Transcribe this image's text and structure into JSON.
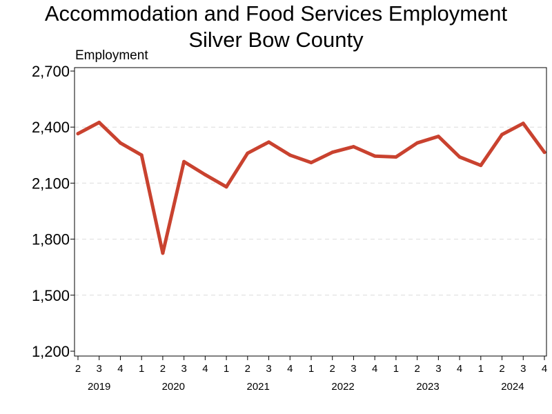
{
  "chart_data": {
    "type": "line",
    "title": "Accommodation and Food Services Employment",
    "subtitle": "Silver Bow County",
    "ylabel": "Employment",
    "xlabel": "",
    "ylim": [
      1200,
      2700
    ],
    "yticks": [
      "1,200",
      "1,500",
      "1,800",
      "2,100",
      "2,400",
      "2,700"
    ],
    "grid": true,
    "x_quarters": [
      "2",
      "3",
      "4",
      "1",
      "2",
      "3",
      "4",
      "1",
      "2",
      "3",
      "4",
      "1",
      "2",
      "3",
      "4",
      "1",
      "2",
      "3",
      "4",
      "1",
      "2",
      "3",
      "4"
    ],
    "x_years": [
      "2019",
      "2020",
      "2021",
      "2022",
      "2023",
      "2024"
    ],
    "year_start_index": [
      0,
      3,
      7,
      11,
      15,
      19
    ],
    "series": [
      {
        "values": [
          2365,
          2425,
          2315,
          2250,
          1725,
          2215,
          2145,
          2080,
          2260,
          2320,
          2250,
          2210,
          2265,
          2295,
          2245,
          2240,
          2315,
          2350,
          2240,
          2195,
          2360,
          2420,
          2265
        ],
        "color": "#c9422f"
      }
    ]
  }
}
